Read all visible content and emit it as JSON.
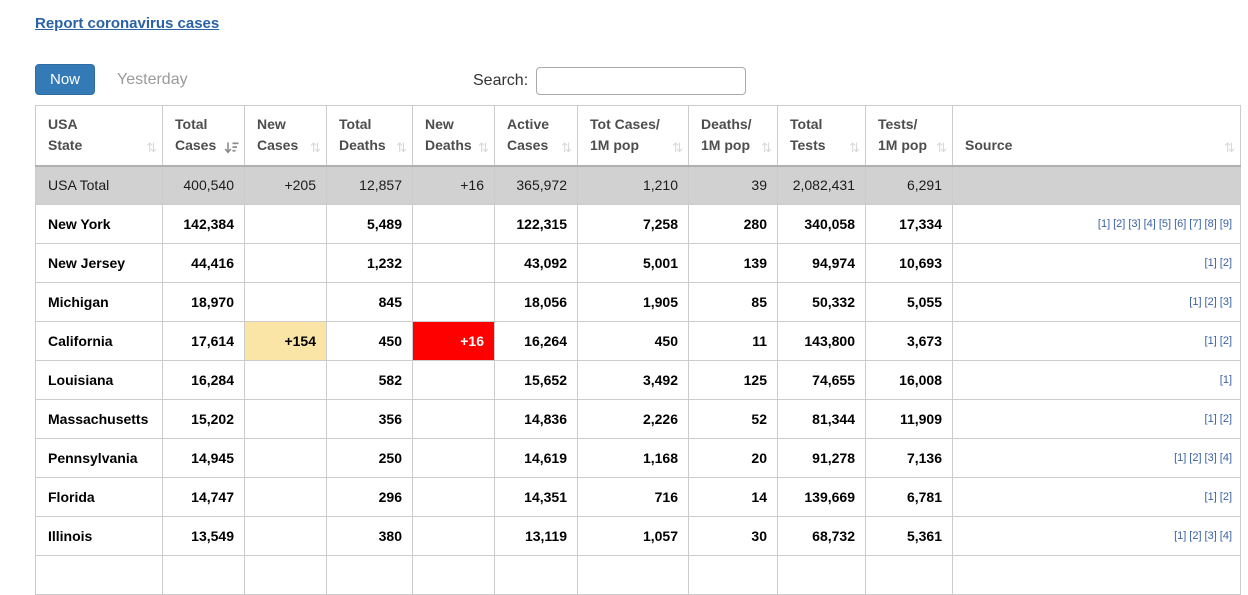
{
  "header": {
    "report_link": "Report coronavirus cases",
    "now_button": "Now",
    "yesterday_button": "Yesterday",
    "search_label": "Search:",
    "search_value": ""
  },
  "table": {
    "columns": [
      {
        "line1": "USA",
        "line2": "State",
        "sort": "none"
      },
      {
        "line1": "Total",
        "line2": "Cases",
        "sort": "desc"
      },
      {
        "line1": "New",
        "line2": "Cases",
        "sort": "none"
      },
      {
        "line1": "Total",
        "line2": "Deaths",
        "sort": "none"
      },
      {
        "line1": "New",
        "line2": "Deaths",
        "sort": "none"
      },
      {
        "line1": "Active",
        "line2": "Cases",
        "sort": "none"
      },
      {
        "line1": "Tot Cases/",
        "line2": "1M pop",
        "sort": "none"
      },
      {
        "line1": "Deaths/",
        "line2": "1M pop",
        "sort": "none"
      },
      {
        "line1": "Total",
        "line2": "Tests",
        "sort": "none"
      },
      {
        "line1": "Tests/",
        "line2": "1M pop",
        "sort": "none"
      },
      {
        "line1": "Source",
        "line2": "",
        "sort": "none"
      }
    ],
    "total_row": {
      "state": "USA Total",
      "total_cases": "400,540",
      "new_cases": "+205",
      "total_deaths": "12,857",
      "new_deaths": "+16",
      "active_cases": "365,972",
      "cases_per_1m": "1,210",
      "deaths_per_1m": "39",
      "total_tests": "2,082,431",
      "tests_per_1m": "6,291",
      "sources": []
    },
    "rows": [
      {
        "state": "New York",
        "total_cases": "142,384",
        "new_cases": "",
        "total_deaths": "5,489",
        "new_deaths": "",
        "active_cases": "122,315",
        "cases_per_1m": "7,258",
        "deaths_per_1m": "280",
        "total_tests": "340,058",
        "tests_per_1m": "17,334",
        "sources": [
          "[1]",
          "[2]",
          "[3]",
          "[4]",
          "[5]",
          "[6]",
          "[7]",
          "[8]",
          "[9]"
        ]
      },
      {
        "state": "New Jersey",
        "total_cases": "44,416",
        "new_cases": "",
        "total_deaths": "1,232",
        "new_deaths": "",
        "active_cases": "43,092",
        "cases_per_1m": "5,001",
        "deaths_per_1m": "139",
        "total_tests": "94,974",
        "tests_per_1m": "10,693",
        "sources": [
          "[1]",
          "[2]"
        ]
      },
      {
        "state": "Michigan",
        "total_cases": "18,970",
        "new_cases": "",
        "total_deaths": "845",
        "new_deaths": "",
        "active_cases": "18,056",
        "cases_per_1m": "1,905",
        "deaths_per_1m": "85",
        "total_tests": "50,332",
        "tests_per_1m": "5,055",
        "sources": [
          "[1]",
          "[2]",
          "[3]"
        ]
      },
      {
        "state": "California",
        "total_cases": "17,614",
        "new_cases": "+154",
        "new_cases_highlight": true,
        "total_deaths": "450",
        "new_deaths": "+16",
        "new_deaths_highlight": true,
        "active_cases": "16,264",
        "cases_per_1m": "450",
        "deaths_per_1m": "11",
        "total_tests": "143,800",
        "tests_per_1m": "3,673",
        "sources": [
          "[1]",
          "[2]"
        ]
      },
      {
        "state": "Louisiana",
        "total_cases": "16,284",
        "new_cases": "",
        "total_deaths": "582",
        "new_deaths": "",
        "active_cases": "15,652",
        "cases_per_1m": "3,492",
        "deaths_per_1m": "125",
        "total_tests": "74,655",
        "tests_per_1m": "16,008",
        "sources": [
          "[1]"
        ]
      },
      {
        "state": "Massachusetts",
        "total_cases": "15,202",
        "new_cases": "",
        "total_deaths": "356",
        "new_deaths": "",
        "active_cases": "14,836",
        "cases_per_1m": "2,226",
        "deaths_per_1m": "52",
        "total_tests": "81,344",
        "tests_per_1m": "11,909",
        "sources": [
          "[1]",
          "[2]"
        ]
      },
      {
        "state": "Pennsylvania",
        "total_cases": "14,945",
        "new_cases": "",
        "total_deaths": "250",
        "new_deaths": "",
        "active_cases": "14,619",
        "cases_per_1m": "1,168",
        "deaths_per_1m": "20",
        "total_tests": "91,278",
        "tests_per_1m": "7,136",
        "sources": [
          "[1]",
          "[2]",
          "[3]",
          "[4]"
        ]
      },
      {
        "state": "Florida",
        "total_cases": "14,747",
        "new_cases": "",
        "total_deaths": "296",
        "new_deaths": "",
        "active_cases": "14,351",
        "cases_per_1m": "716",
        "deaths_per_1m": "14",
        "total_tests": "139,669",
        "tests_per_1m": "6,781",
        "sources": [
          "[1]",
          "[2]"
        ]
      },
      {
        "state": "Illinois",
        "total_cases": "13,549",
        "new_cases": "",
        "total_deaths": "380",
        "new_deaths": "",
        "active_cases": "13,119",
        "cases_per_1m": "1,057",
        "deaths_per_1m": "30",
        "total_tests": "68,732",
        "tests_per_1m": "5,361",
        "sources": [
          "[1]",
          "[2]",
          "[3]",
          "[4]"
        ]
      }
    ]
  },
  "colors": {
    "accent_blue": "#337ab7",
    "link_blue": "#2a62a5",
    "new_cases_highlight": "#fae5a6",
    "new_deaths_highlight": "#ff0000",
    "total_row_bg": "#d1d1d1"
  }
}
